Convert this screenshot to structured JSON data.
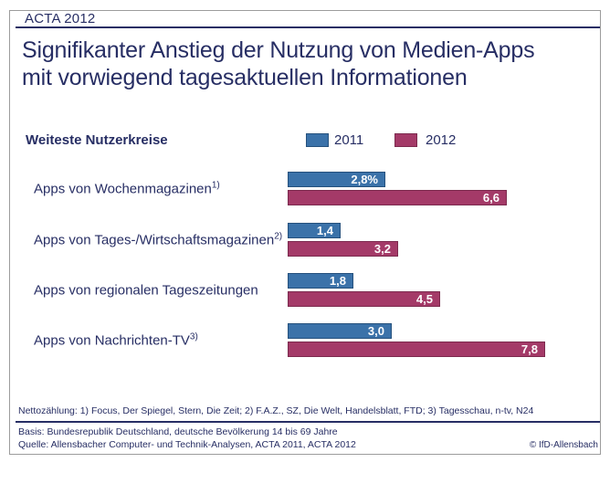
{
  "header": {
    "eyebrow": "ACTA 2012"
  },
  "title": {
    "lines": [
      "Signifikanter Anstieg der Nutzung von Medien-Apps",
      "mit vorwiegend tagesaktuellen Informationen"
    ]
  },
  "chart_data": {
    "type": "bar",
    "orientation": "horizontal",
    "section_label": "Weiteste Nutzerkreise",
    "unit": "percent of population (Weiteste Nutzerkreise)",
    "legend": [
      {
        "label": "2011",
        "color": "#3b72a9"
      },
      {
        "label": "2012",
        "color": "#a43a68"
      }
    ],
    "legend_position": "top",
    "grid": false,
    "xlim": [
      0,
      9
    ],
    "categories": [
      "Apps von Wochenmagazinen",
      "Apps von Tages-/Wirtschaftsmagazinen",
      "Apps von regionalen Tageszeitungen",
      "Apps von Nachrichten-TV"
    ],
    "series": [
      {
        "name": "2011",
        "values": [
          2.8,
          1.4,
          1.8,
          3.0
        ]
      },
      {
        "name": "2012",
        "values": [
          6.6,
          3.2,
          4.5,
          7.8
        ]
      }
    ],
    "rows": [
      {
        "category": "Apps von Wochenmagazinen",
        "footnote": "1)",
        "v2011": 2.8,
        "v2012": 6.6,
        "label2011": "2,8%",
        "label2012": "6,6"
      },
      {
        "category": "Apps von Tages-/Wirtschaftsmagazinen",
        "footnote": "2)",
        "v2011": 1.4,
        "v2012": 3.2,
        "label2011": "1,4",
        "label2012": "3,2"
      },
      {
        "category": "Apps von regionalen Tageszeitungen",
        "footnote": "",
        "v2011": 1.8,
        "v2012": 4.5,
        "label2011": "1,8",
        "label2012": "4,5"
      },
      {
        "category": "Apps von Nachrichten-TV",
        "footnote": "3)",
        "v2011": 3.0,
        "v2012": 7.8,
        "label2011": "3,0",
        "label2012": "7,8"
      }
    ]
  },
  "footer": {
    "notes": "Nettozählung: 1) Focus, Der Spiegel, Stern, Die Zeit; 2) F.A.Z., SZ, Die Welt, Handelsblatt, FTD; 3) Tagesschau, n-tv, N24",
    "basis": "Basis: Bundesrepublik Deutschland, deutsche Bevölkerung 14 bis 69 Jahre",
    "quelle": "Quelle: Allensbacher Computer- und Technik-Analysen, ACTA 2011, ACTA 2012",
    "copyright": "© IfD-Allensbach"
  },
  "colors": {
    "navy": "#272e64",
    "bar_2011": "#3b72a9",
    "bar_2012": "#a43a68",
    "frame_border": "#9c9c9c"
  }
}
